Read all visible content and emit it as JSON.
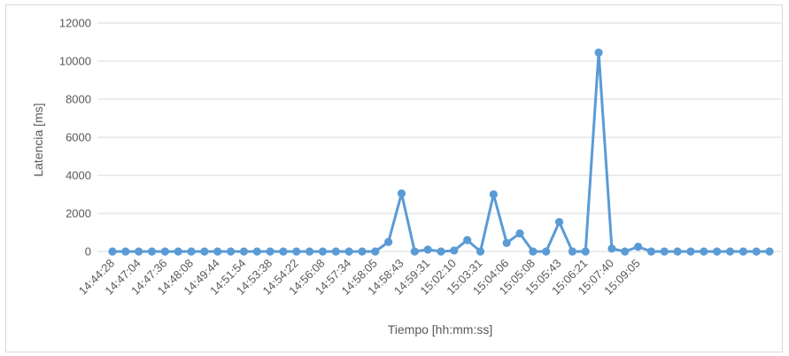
{
  "chart_data": {
    "type": "line",
    "title": "",
    "xlabel": "Tiempo [hh:mm:ss]",
    "ylabel": "Latencia [ms]",
    "ylim": [
      0,
      12000
    ],
    "yticks": [
      0,
      2000,
      4000,
      6000,
      8000,
      10000,
      12000
    ],
    "grid": true,
    "legend": "none",
    "series_color": "#5b9bd5",
    "grid_color": "#d9d9d9",
    "x_tick_labels": [
      "14:44:28",
      "14:47:04",
      "14:47:36",
      "14:48:08",
      "14:49:44",
      "14:51:54",
      "14:53:38",
      "14:54:22",
      "14:56:08",
      "14:57:34",
      "14:58:05",
      "14:58:43",
      "14:59:31",
      "15:02:10",
      "15:03:31",
      "15:04:06",
      "15:05:08",
      "15:05:43",
      "15:06:21",
      "15:07:40",
      "15:09:05"
    ],
    "label_every": 2,
    "series": [
      {
        "values": [
          0,
          0,
          0,
          0,
          0,
          0,
          0,
          0,
          0,
          0,
          0,
          0,
          0,
          0,
          0,
          0,
          0,
          0,
          0,
          0,
          0,
          500,
          3050,
          0,
          100,
          0,
          50,
          600,
          0,
          3000,
          450,
          950,
          0,
          0,
          1550,
          0,
          0,
          10450,
          150,
          0,
          250,
          0,
          0,
          0,
          0,
          0,
          0,
          0,
          0,
          0,
          0
        ]
      }
    ]
  }
}
